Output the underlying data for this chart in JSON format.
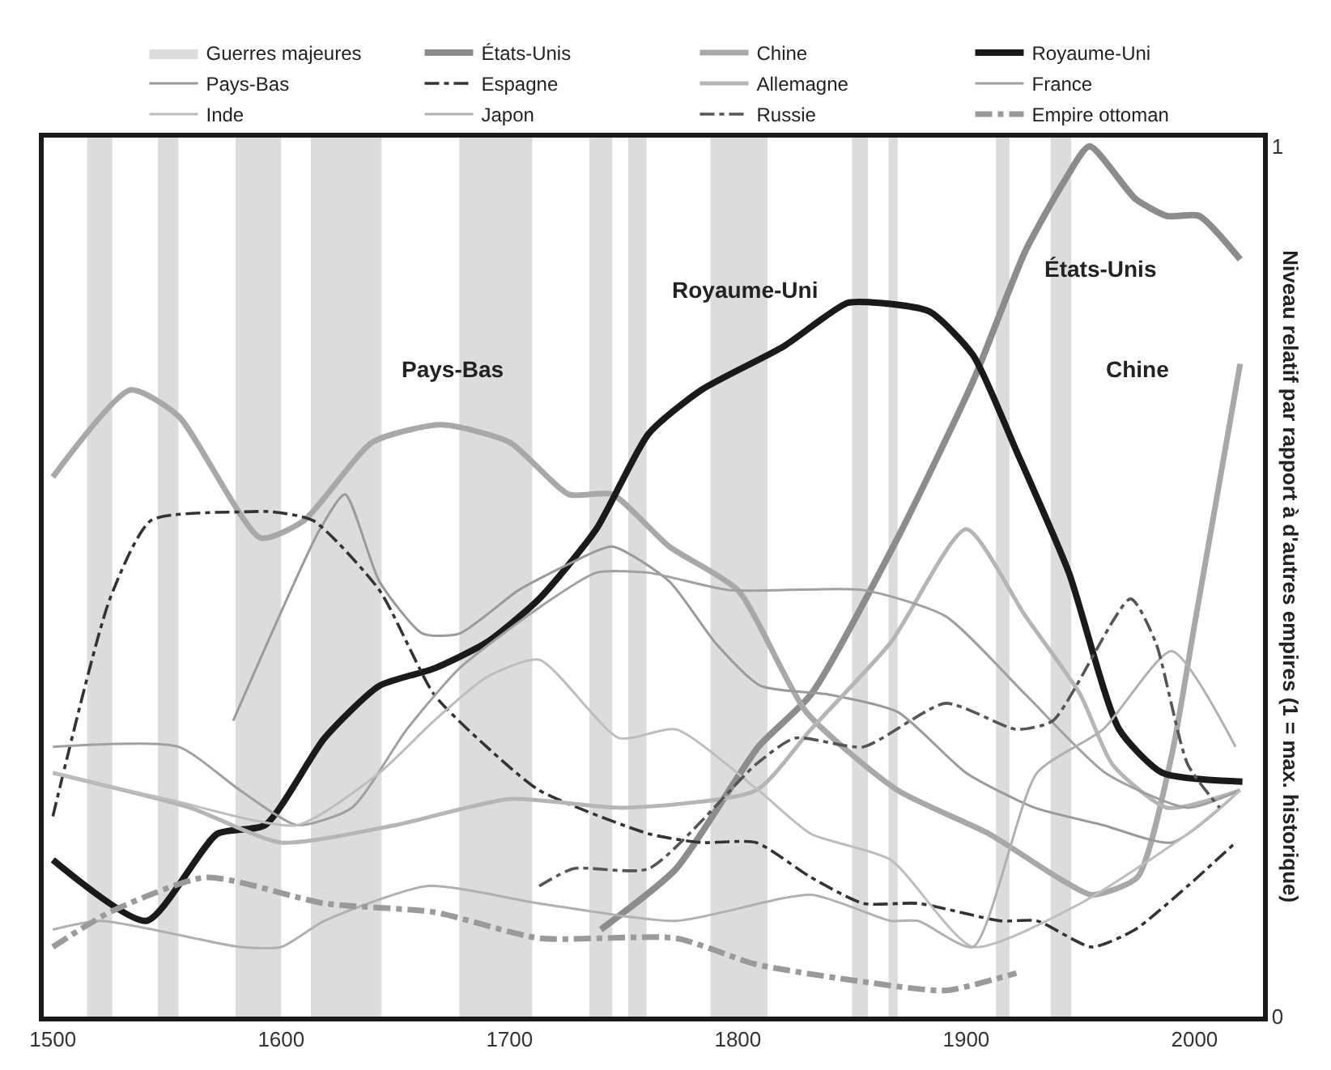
{
  "chart_data": {
    "type": "line",
    "ylabel": "Niveau relatif par rapport à d'autres empires (1 = max. historique)",
    "xlim": [
      1496,
      2030
    ],
    "xticks": [
      1500,
      1600,
      1700,
      1800,
      1900,
      2000
    ],
    "ylim": [
      0,
      1.01
    ],
    "yticks": [
      0,
      1
    ],
    "legend": "top",
    "marker": "none",
    "bands": [
      {
        "axis": "x",
        "from": 1515,
        "to": 1526,
        "label": "Guerres majeures",
        "color": "#dcdcdc"
      },
      {
        "axis": "x",
        "from": 1546,
        "to": 1555,
        "color": "#dcdcdc"
      },
      {
        "axis": "x",
        "from": 1580,
        "to": 1600,
        "color": "#dcdcdc"
      },
      {
        "axis": "x",
        "from": 1613,
        "to": 1644,
        "color": "#dcdcdc"
      },
      {
        "axis": "x",
        "from": 1678,
        "to": 1710,
        "color": "#dcdcdc"
      },
      {
        "axis": "x",
        "from": 1735,
        "to": 1745,
        "color": "#dcdcdc"
      },
      {
        "axis": "x",
        "from": 1752,
        "to": 1760,
        "color": "#dcdcdc"
      },
      {
        "axis": "x",
        "from": 1788,
        "to": 1813,
        "color": "#dcdcdc"
      },
      {
        "axis": "x",
        "from": 1850,
        "to": 1857,
        "color": "#dcdcdc"
      },
      {
        "axis": "x",
        "from": 1866,
        "to": 1870,
        "color": "#dcdcdc"
      },
      {
        "axis": "x",
        "from": 1913,
        "to": 1919,
        "color": "#dcdcdc"
      },
      {
        "axis": "x",
        "from": 1937,
        "to": 1946,
        "color": "#dcdcdc"
      }
    ],
    "series": [
      {
        "name": "États-Unis",
        "color": "#8c8c8c",
        "line_style": "solid",
        "x": [
          1740,
          1773,
          1809,
          1832,
          1870,
          1903,
          1926,
          1943,
          1954,
          1974,
          1988,
          2002,
          2020
        ],
        "values": [
          0.1,
          0.17,
          0.31,
          0.37,
          0.55,
          0.73,
          0.88,
          0.96,
          1.0,
          0.94,
          0.92,
          0.92,
          0.87
        ]
      },
      {
        "name": "Chine",
        "color": "#a8a8a8",
        "line_style": "solid",
        "x": [
          1500,
          1534,
          1555,
          1591,
          1610,
          1640,
          1670,
          1700,
          1726,
          1745,
          1770,
          1800,
          1830,
          1870,
          1910,
          1940,
          1955,
          1975,
          1990,
          2000,
          2010,
          2020
        ],
        "values": [
          0.62,
          0.72,
          0.69,
          0.55,
          0.57,
          0.66,
          0.68,
          0.66,
          0.6,
          0.6,
          0.54,
          0.49,
          0.35,
          0.26,
          0.21,
          0.16,
          0.14,
          0.16,
          0.3,
          0.45,
          0.6,
          0.75
        ]
      },
      {
        "name": "Royaume-Uni",
        "color": "#1a1a1a",
        "line_style": "solid",
        "x": [
          1500,
          1541,
          1572,
          1593,
          1619,
          1643,
          1667,
          1690,
          1713,
          1738,
          1761,
          1784,
          1820,
          1848,
          1862,
          1884,
          1903,
          1922,
          1945,
          1967,
          1986,
          2021
        ],
        "values": [
          0.18,
          0.11,
          0.21,
          0.22,
          0.32,
          0.38,
          0.4,
          0.43,
          0.48,
          0.56,
          0.67,
          0.72,
          0.77,
          0.82,
          0.82,
          0.81,
          0.76,
          0.65,
          0.51,
          0.33,
          0.28,
          0.27
        ]
      },
      {
        "name": "Pays-Bas",
        "color": "#9a9a9a",
        "line_style": "solid",
        "x": [
          1579,
          1617,
          1628,
          1643,
          1662,
          1678,
          1704,
          1726,
          1745,
          1770,
          1790,
          1810,
          1840,
          1870,
          1900,
          1930,
          1960,
          1990,
          2020
        ],
        "values": [
          0.34,
          0.56,
          0.6,
          0.5,
          0.44,
          0.44,
          0.49,
          0.52,
          0.54,
          0.5,
          0.43,
          0.38,
          0.37,
          0.35,
          0.28,
          0.24,
          0.22,
          0.2,
          0.26
        ]
      },
      {
        "name": "Espagne",
        "color": "#333333",
        "line_style": "dashed",
        "x": [
          1500,
          1525,
          1543,
          1584,
          1596,
          1614,
          1643,
          1667,
          1690,
          1713,
          1761,
          1784,
          1808,
          1832,
          1855,
          1879,
          1915,
          1931,
          1955,
          1974,
          1997,
          2018
        ],
        "values": [
          0.23,
          0.48,
          0.57,
          0.58,
          0.58,
          0.57,
          0.49,
          0.37,
          0.31,
          0.26,
          0.21,
          0.2,
          0.2,
          0.16,
          0.13,
          0.13,
          0.11,
          0.11,
          0.08,
          0.1,
          0.15,
          0.2
        ]
      },
      {
        "name": "Allemagne",
        "color": "#b5b5b5",
        "line_style": "solid",
        "x": [
          1500,
          1560,
          1600,
          1650,
          1700,
          1750,
          1808,
          1832,
          1867,
          1900,
          1926,
          1950,
          1964,
          1988,
          2020
        ],
        "values": [
          0.28,
          0.24,
          0.2,
          0.22,
          0.25,
          0.24,
          0.26,
          0.33,
          0.43,
          0.56,
          0.46,
          0.37,
          0.29,
          0.24,
          0.26
        ]
      },
      {
        "name": "France",
        "color": "#a0a0a0",
        "line_style": "solid",
        "x": [
          1500,
          1555,
          1582,
          1607,
          1631,
          1655,
          1678,
          1713,
          1738,
          1761,
          1796,
          1855,
          1891,
          1926,
          1961,
          1997,
          2020
        ],
        "values": [
          0.31,
          0.31,
          0.26,
          0.22,
          0.24,
          0.33,
          0.4,
          0.47,
          0.51,
          0.51,
          0.49,
          0.49,
          0.46,
          0.37,
          0.28,
          0.24,
          0.26
        ]
      },
      {
        "name": "Inde",
        "color": "#bdbdbd",
        "line_style": "solid",
        "x": [
          1500,
          1550,
          1607,
          1643,
          1667,
          1690,
          1713,
          1748,
          1773,
          1809,
          1832,
          1867,
          1903,
          1950,
          1997,
          2020
        ],
        "values": [
          0.28,
          0.25,
          0.22,
          0.28,
          0.34,
          0.39,
          0.41,
          0.32,
          0.33,
          0.26,
          0.21,
          0.18,
          0.08,
          0.13,
          0.21,
          0.26
        ]
      },
      {
        "name": "Japon",
        "color": "#b0b0b0",
        "line_style": "solid",
        "x": [
          1500,
          1521,
          1582,
          1600,
          1619,
          1664,
          1713,
          1773,
          1832,
          1867,
          1879,
          1903,
          1931,
          1960,
          1990,
          2018
        ],
        "values": [
          0.1,
          0.11,
          0.08,
          0.08,
          0.11,
          0.15,
          0.13,
          0.11,
          0.14,
          0.11,
          0.11,
          0.08,
          0.28,
          0.33,
          0.42,
          0.31
        ]
      },
      {
        "name": "Russie",
        "color": "#555555",
        "line_style": "dashed",
        "x": [
          1713,
          1728,
          1761,
          1808,
          1825,
          1855,
          1891,
          1922,
          1938,
          1972,
          1983,
          1997,
          2011
        ],
        "values": [
          0.15,
          0.17,
          0.17,
          0.29,
          0.32,
          0.31,
          0.36,
          0.33,
          0.34,
          0.48,
          0.43,
          0.29,
          0.24
        ]
      },
      {
        "name": "Empire ottoman",
        "color": "#9a9a9a",
        "line_style": "dashed",
        "x": [
          1500,
          1525,
          1567,
          1619,
          1667,
          1713,
          1773,
          1808,
          1855,
          1891,
          1922
        ],
        "values": [
          0.08,
          0.12,
          0.16,
          0.13,
          0.12,
          0.09,
          0.09,
          0.06,
          0.04,
          0.03,
          0.05
        ]
      }
    ],
    "annotations": [
      "Pays-Bas",
      "Royaume-Uni",
      "États-Unis",
      "Chine"
    ]
  }
}
